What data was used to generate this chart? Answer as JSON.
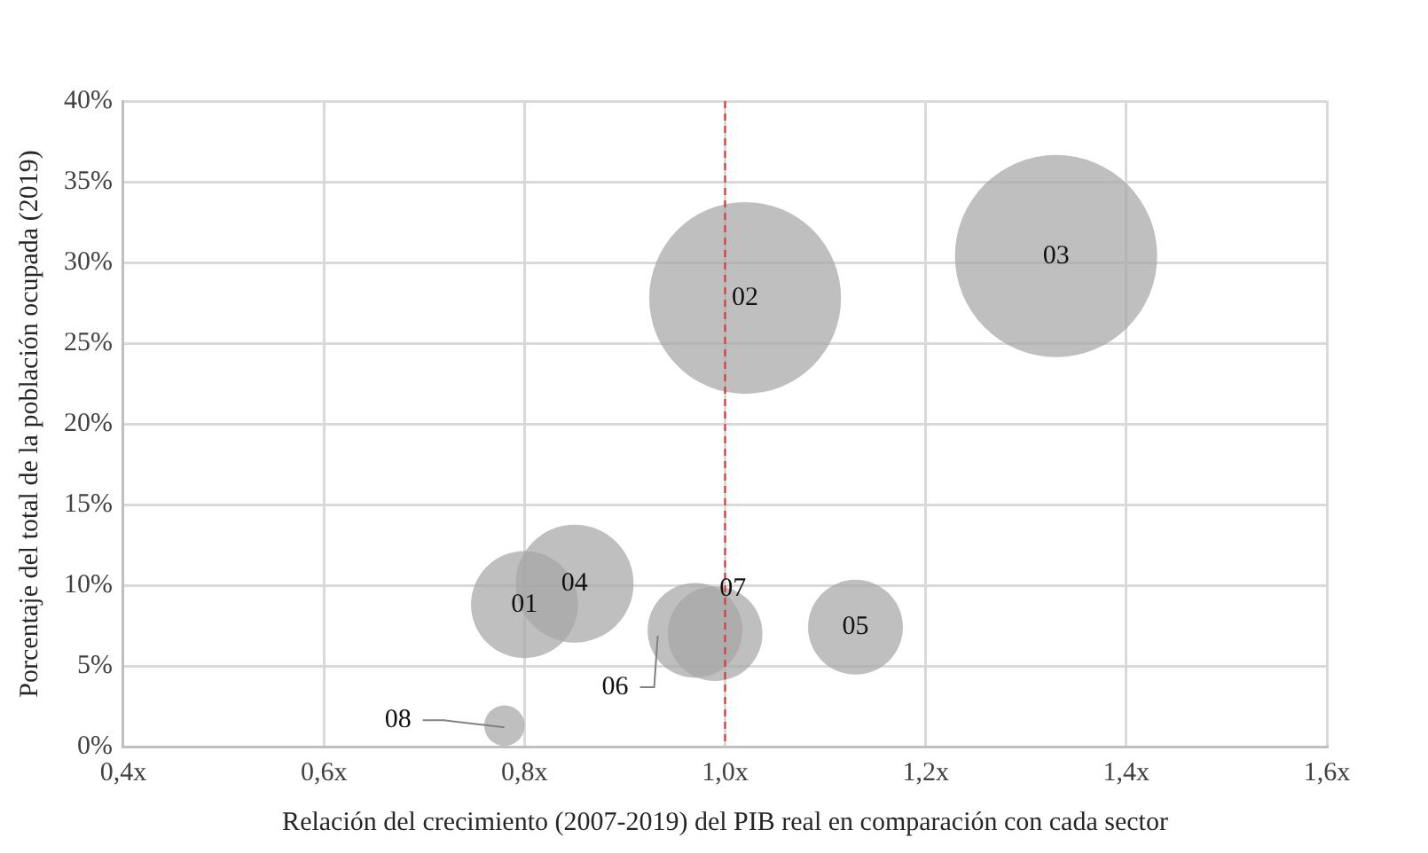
{
  "chart_data": {
    "type": "bubble",
    "xlabel": "Relación del crecimiento (2007-2019) del PIB real en comparación con cada sector",
    "ylabel": "Porcentaje del total de la población ocupada (2019)",
    "x": [
      0.8,
      1.02,
      1.33,
      0.85,
      1.13,
      0.97,
      0.99,
      0.78
    ],
    "values": [
      8.8,
      27.8,
      30.4,
      10.1,
      7.4,
      7.2,
      7.0,
      1.3
    ],
    "sizes": [
      0.28,
      0.9,
      1,
      0.34,
      0.22,
      0.22,
      0.22,
      0.04
    ],
    "color": "#a6a6a6",
    "xlim": [
      0.4,
      1.6
    ],
    "xticks": [
      {
        "value": 0.4,
        "label": "0,4x"
      },
      {
        "value": 0.6,
        "label": "0,6x"
      },
      {
        "value": 0.8,
        "label": "0,8x"
      },
      {
        "value": 1.0,
        "label": "1,0x"
      },
      {
        "value": 1.2,
        "label": "1,2x"
      },
      {
        "value": 1.4,
        "label": "1,4x"
      },
      {
        "value": 1.6,
        "label": "1,6x"
      }
    ],
    "ylim": [
      0,
      40
    ],
    "yticks": [
      {
        "value": 0,
        "label": "0%"
      },
      {
        "value": 5,
        "label": "5%"
      },
      {
        "value": 10,
        "label": "10%"
      },
      {
        "value": 15,
        "label": "15%"
      },
      {
        "value": 20,
        "label": "20%"
      },
      {
        "value": 25,
        "label": "25%"
      },
      {
        "value": 30,
        "label": "30%"
      },
      {
        "value": 35,
        "label": "35%"
      },
      {
        "value": 40,
        "label": "40%"
      }
    ],
    "grid": true,
    "legend": false,
    "ref_lines": [
      {
        "axis": "x",
        "value": 1.0,
        "label": null,
        "color": "#e03030",
        "line_style": "dashed"
      }
    ],
    "annotations": [
      {
        "text": "01",
        "x": 0.8,
        "y": 8.8
      },
      {
        "text": "02",
        "x": 1.02,
        "y": 27.8
      },
      {
        "text": "03",
        "x": 1.33,
        "y": 30.4
      },
      {
        "text": "04",
        "x": 0.85,
        "y": 10.1
      },
      {
        "text": "05",
        "x": 1.13,
        "y": 7.4
      },
      {
        "text": "06",
        "x": 0.97,
        "y": 7.2
      },
      {
        "text": "07",
        "x": 0.99,
        "y": 7.0
      },
      {
        "text": "08",
        "x": 0.78,
        "y": 1.3
      }
    ]
  }
}
